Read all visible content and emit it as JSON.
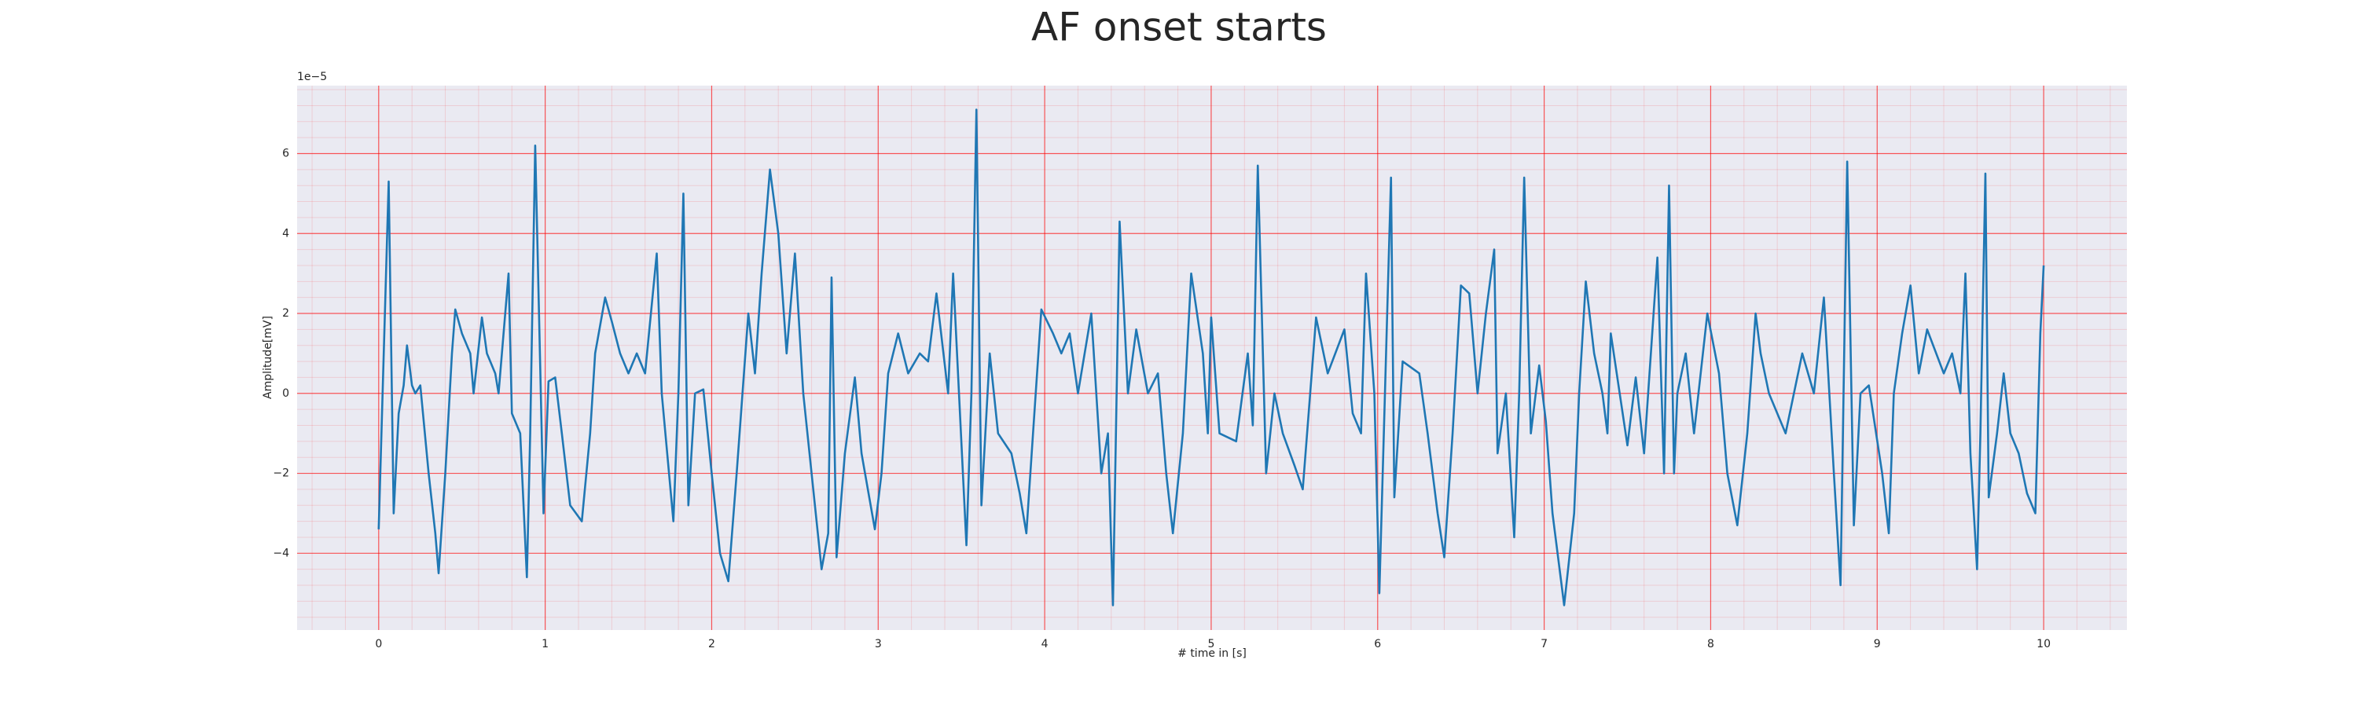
{
  "chart_data": {
    "type": "line",
    "title": "AF onset starts",
    "xlabel": "# time in [s]",
    "ylabel": "Amplitude[mV]",
    "offset_text": "1e−5",
    "color": "#1f77b4",
    "grid": true,
    "minor_grid": true,
    "grid_color": "#ff0000",
    "background": "#eaeaf2",
    "xlim": [
      -0.49,
      10.5
    ],
    "ylim": [
      -5.92,
      7.7
    ],
    "xticks": [
      0,
      1,
      2,
      3,
      4,
      5,
      6,
      7,
      8,
      9,
      10
    ],
    "yticks": [
      {
        "value": -4,
        "label": "−4"
      },
      {
        "value": -2,
        "label": "−2"
      },
      0,
      2,
      4,
      6
    ],
    "x": [
      0,
      0.06,
      0.09,
      0.12,
      0.15,
      0.17,
      0.2,
      0.22,
      0.25,
      0.3,
      0.34,
      0.36,
      0.4,
      0.44,
      0.46,
      0.5,
      0.55,
      0.57,
      0.62,
      0.65,
      0.7,
      0.72,
      0.78,
      0.8,
      0.85,
      0.89,
      0.91,
      0.94,
      0.99,
      1.02,
      1.06,
      1.1,
      1.15,
      1.22,
      1.27,
      1.3,
      1.36,
      1.4,
      1.45,
      1.5,
      1.55,
      1.6,
      1.67,
      1.7,
      1.77,
      1.8,
      1.83,
      1.86,
      1.9,
      1.95,
      2.0,
      2.05,
      2.1,
      2.15,
      2.22,
      2.26,
      2.3,
      2.35,
      2.4,
      2.45,
      2.5,
      2.55,
      2.6,
      2.66,
      2.7,
      2.72,
      2.75,
      2.8,
      2.86,
      2.9,
      2.98,
      3.02,
      3.06,
      3.12,
      3.18,
      3.25,
      3.3,
      3.35,
      3.42,
      3.45,
      3.53,
      3.56,
      3.59,
      3.62,
      3.67,
      3.72,
      3.8,
      3.85,
      3.89,
      3.93,
      3.98,
      4.05,
      4.1,
      4.15,
      4.2,
      4.28,
      4.34,
      4.38,
      4.41,
      4.45,
      4.5,
      4.55,
      4.62,
      4.68,
      4.73,
      4.77,
      4.83,
      4.88,
      4.95,
      4.98,
      5.0,
      5.05,
      5.15,
      5.22,
      5.25,
      5.28,
      5.33,
      5.38,
      5.43,
      5.5,
      5.55,
      5.63,
      5.7,
      5.8,
      5.85,
      5.9,
      5.93,
      5.98,
      6.01,
      6.08,
      6.1,
      6.15,
      6.25,
      6.3,
      6.36,
      6.4,
      6.45,
      6.5,
      6.55,
      6.6,
      6.65,
      6.7,
      6.72,
      6.77,
      6.82,
      6.85,
      6.88,
      6.92,
      6.97,
      7.01,
      7.05,
      7.12,
      7.18,
      7.21,
      7.25,
      7.3,
      7.35,
      7.38,
      7.4,
      7.5,
      7.55,
      7.6,
      7.68,
      7.72,
      7.75,
      7.78,
      7.8,
      7.85,
      7.9,
      7.98,
      8.05,
      8.1,
      8.16,
      8.22,
      8.27,
      8.3,
      8.35,
      8.45,
      8.55,
      8.62,
      8.68,
      8.74,
      8.78,
      8.82,
      8.86,
      8.9,
      8.95,
      9.03,
      9.07,
      9.1,
      9.15,
      9.2,
      9.25,
      9.3,
      9.4,
      9.45,
      9.5,
      9.53,
      9.56,
      9.6,
      9.62,
      9.65,
      9.67,
      9.72,
      9.76,
      9.8,
      9.85,
      9.9,
      9.95,
      9.98,
      10.0
    ],
    "values": [
      -3.4,
      5.3,
      -3.0,
      -0.5,
      0.2,
      1.2,
      0.2,
      0,
      0.2,
      -2,
      -3.5,
      -4.5,
      -2,
      1,
      2.1,
      1.5,
      1,
      0,
      1.9,
      1,
      0.5,
      0,
      3,
      -0.5,
      -1,
      -4.6,
      -1,
      6.2,
      -3,
      0.3,
      0.4,
      -1,
      -2.8,
      -3.2,
      -1,
      1,
      2.4,
      1.8,
      1,
      0.5,
      1,
      0.5,
      3.5,
      0,
      -3.2,
      0,
      5,
      -2.8,
      0,
      0.1,
      -2,
      -4,
      -4.7,
      -2,
      2,
      0.5,
      3,
      5.6,
      4,
      1,
      3.5,
      0,
      -2,
      -4.4,
      -3.5,
      2.9,
      -4.1,
      -1.5,
      0.4,
      -1.5,
      -3.4,
      -2,
      0.5,
      1.5,
      0.5,
      1,
      0.8,
      2.5,
      0,
      3,
      -3.8,
      0,
      7.1,
      -2.8,
      1,
      -1,
      -1.5,
      -2.5,
      -3.5,
      -1,
      2.1,
      1.5,
      1,
      1.5,
      0,
      2,
      -2,
      -1,
      -5.3,
      4.3,
      0,
      1.6,
      0,
      0.5,
      -2,
      -3.5,
      -1,
      3,
      1,
      -1,
      1.9,
      -1,
      -1.2,
      1,
      -0.8,
      5.7,
      -2,
      0,
      -1,
      -1.8,
      -2.4,
      1.9,
      0.5,
      1.6,
      -0.5,
      -1,
      3,
      0,
      -5,
      5.4,
      -2.6,
      0.8,
      0.5,
      -1,
      -3,
      -4.1,
      -1,
      2.7,
      2.5,
      0,
      2,
      3.6,
      -1.5,
      0,
      -3.6,
      0,
      5.4,
      -1,
      0.7,
      -0.7,
      -3,
      -5.3,
      -3,
      0,
      2.8,
      1,
      0,
      -1,
      1.5,
      -1.3,
      0.4,
      -1.5,
      3.4,
      -2,
      5.2,
      -2,
      0,
      1,
      -1,
      2,
      0.5,
      -2,
      -3.3,
      -1,
      2,
      1,
      0,
      -1,
      1,
      0,
      2.4,
      -2,
      -4.8,
      5.8,
      -3.3,
      0,
      0.2,
      -2,
      -3.5,
      0,
      1.5,
      2.7,
      0.5,
      1.6,
      0.5,
      1,
      0,
      3,
      -1.5,
      -4.4,
      -1,
      5.5,
      -2.6,
      -1,
      0.5,
      -1,
      -1.5,
      -2.5,
      -3,
      1.5,
      3.2
    ]
  }
}
